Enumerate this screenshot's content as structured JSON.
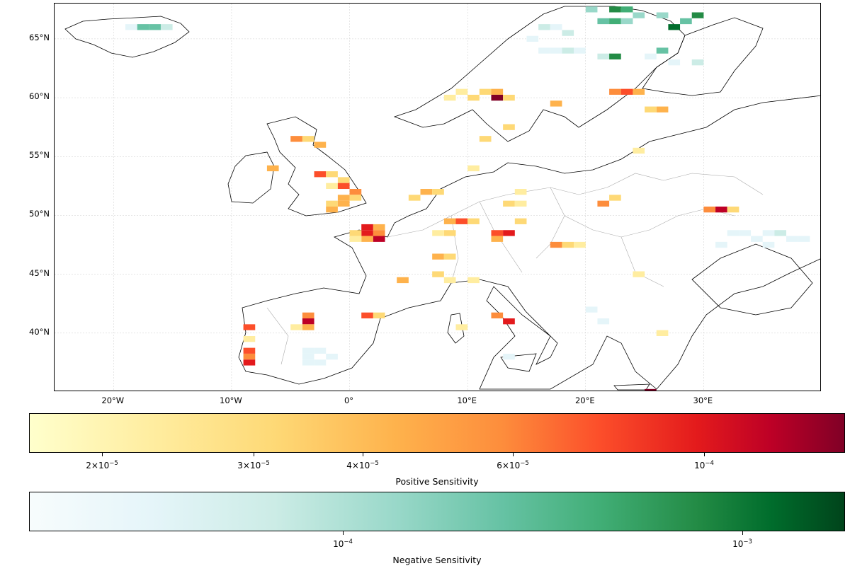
{
  "map": {
    "lat_labels": [
      "65°N",
      "60°N",
      "55°N",
      "50°N",
      "45°N",
      "40°N"
    ],
    "lon_labels": [
      "20°W",
      "10°W",
      "0°",
      "10°E",
      "20°E",
      "30°E"
    ],
    "extent_lon": [
      -25,
      40
    ],
    "extent_lat": [
      35,
      68
    ]
  },
  "colorbars": {
    "positive": {
      "label": "Positive Sensitivity",
      "scale": "log",
      "colors": [
        "#ffffcc",
        "#ffeda0",
        "#fed976",
        "#feb24c",
        "#fd8d3c",
        "#fc4e2a",
        "#e31a1c",
        "#bd0026",
        "#800026"
      ],
      "ticks": [
        {
          "mantissa": "2",
          "exp": "−5"
        },
        {
          "mantissa": "3",
          "exp": "−5"
        },
        {
          "mantissa": "4",
          "exp": "−5"
        },
        {
          "mantissa": "6",
          "exp": "−5"
        },
        {
          "mantissa": "",
          "exp": "−4"
        }
      ]
    },
    "negative": {
      "label": "Negative Sensitivity",
      "scale": "log",
      "colors": [
        "#f7fcfd",
        "#e5f5f9",
        "#ccece6",
        "#99d8c9",
        "#66c2a4",
        "#41ae76",
        "#238b45",
        "#006d2c",
        "#00441b"
      ],
      "ticks": [
        {
          "mantissa": "",
          "exp": "−4"
        },
        {
          "mantissa": "",
          "exp": "−3"
        }
      ]
    }
  },
  "cells": {
    "positive": [
      [
        -4.5,
        56.5,
        4
      ],
      [
        -3.5,
        56.5,
        2
      ],
      [
        -2.5,
        56,
        3
      ],
      [
        -6.5,
        54,
        3
      ],
      [
        -2.5,
        53.5,
        5
      ],
      [
        -1.5,
        53.5,
        2
      ],
      [
        -0.5,
        53,
        2
      ],
      [
        -1.5,
        52.5,
        1
      ],
      [
        -0.5,
        52.5,
        5
      ],
      [
        0.5,
        52,
        4
      ],
      [
        -0.5,
        51.5,
        3
      ],
      [
        0.5,
        51.5,
        2
      ],
      [
        -1.5,
        51,
        2
      ],
      [
        -0.5,
        51,
        3
      ],
      [
        -1.5,
        50.5,
        3
      ],
      [
        1.5,
        49,
        6
      ],
      [
        2.5,
        49,
        3
      ],
      [
        1.5,
        48.5,
        6
      ],
      [
        2.5,
        48.5,
        4
      ],
      [
        1.5,
        48,
        3
      ],
      [
        2.5,
        48,
        7
      ],
      [
        0.5,
        48.5,
        2
      ],
      [
        0.5,
        48,
        1
      ],
      [
        5.5,
        51.5,
        2
      ],
      [
        6.5,
        52,
        3
      ],
      [
        7.5,
        52,
        2
      ],
      [
        8.5,
        49.5,
        3
      ],
      [
        9.5,
        49.5,
        5
      ],
      [
        10.5,
        49.5,
        2
      ],
      [
        8.5,
        48.5,
        2
      ],
      [
        7.5,
        48.5,
        1
      ],
      [
        12.5,
        48.5,
        5
      ],
      [
        13.5,
        48.5,
        6
      ],
      [
        12.5,
        48,
        3
      ],
      [
        14.5,
        49.5,
        2
      ],
      [
        13.5,
        51,
        2
      ],
      [
        14.5,
        51,
        1
      ],
      [
        14.5,
        52,
        1
      ],
      [
        17.5,
        47.5,
        4
      ],
      [
        18.5,
        47.5,
        2
      ],
      [
        19.5,
        47.5,
        1
      ],
      [
        21.5,
        51,
        4
      ],
      [
        22.5,
        51.5,
        2
      ],
      [
        31.5,
        50.5,
        7
      ],
      [
        30.5,
        50.5,
        4
      ],
      [
        32.5,
        50.5,
        2
      ],
      [
        7.5,
        45,
        2
      ],
      [
        7.5,
        46.5,
        3
      ],
      [
        8.5,
        46.5,
        2
      ],
      [
        4.5,
        44.5,
        3
      ],
      [
        8.5,
        44.5,
        1
      ],
      [
        10.5,
        44.5,
        1
      ],
      [
        1.5,
        41.5,
        5
      ],
      [
        2.5,
        41.5,
        2
      ],
      [
        12.5,
        41.5,
        4
      ],
      [
        13.5,
        41,
        6
      ],
      [
        9.5,
        40.5,
        1
      ],
      [
        -3.5,
        41,
        7
      ],
      [
        -3.5,
        41.5,
        4
      ],
      [
        -3.5,
        40.5,
        3
      ],
      [
        -4.5,
        40.5,
        1
      ],
      [
        -8.5,
        40.5,
        5
      ],
      [
        -8.5,
        38.5,
        5
      ],
      [
        -8.5,
        38,
        4
      ],
      [
        -8.5,
        37.5,
        6
      ],
      [
        -8.5,
        39.5,
        1
      ],
      [
        12.5,
        60.5,
        3
      ],
      [
        11.5,
        60.5,
        2
      ],
      [
        12.5,
        60,
        8
      ],
      [
        13.5,
        60,
        2
      ],
      [
        10.5,
        60,
        2
      ],
      [
        8.5,
        60,
        1
      ],
      [
        9.5,
        60.5,
        1
      ],
      [
        17.5,
        59.5,
        3
      ],
      [
        22.5,
        60.5,
        4
      ],
      [
        23.5,
        60.5,
        5
      ],
      [
        24.5,
        60.5,
        3
      ],
      [
        26.5,
        59,
        3
      ],
      [
        25.5,
        59,
        2
      ],
      [
        11.5,
        56.5,
        2
      ],
      [
        13.5,
        57.5,
        2
      ],
      [
        10.5,
        54,
        1
      ],
      [
        24.5,
        55.5,
        1
      ],
      [
        25.5,
        35,
        8
      ],
      [
        24.5,
        45,
        1
      ],
      [
        26.5,
        40,
        1
      ]
    ],
    "negative": [
      [
        -17.5,
        66,
        4
      ],
      [
        -16.5,
        66,
        4
      ],
      [
        -15.5,
        66,
        2
      ],
      [
        -18.5,
        66,
        1
      ],
      [
        22.5,
        67.5,
        6
      ],
      [
        23.5,
        67.5,
        5
      ],
      [
        24.5,
        67,
        3
      ],
      [
        20.5,
        67.5,
        3
      ],
      [
        21.5,
        66.5,
        4
      ],
      [
        22.5,
        66.5,
        5
      ],
      [
        23.5,
        66.5,
        3
      ],
      [
        27.5,
        66,
        7
      ],
      [
        28.5,
        66.5,
        4
      ],
      [
        29.5,
        67,
        6
      ],
      [
        26.5,
        67,
        3
      ],
      [
        18.5,
        64,
        2
      ],
      [
        19.5,
        64,
        1
      ],
      [
        17.5,
        64,
        1
      ],
      [
        16.5,
        64,
        1
      ],
      [
        21.5,
        63.5,
        2
      ],
      [
        22.5,
        63.5,
        6
      ],
      [
        25.5,
        63.5,
        1
      ],
      [
        26.5,
        64,
        4
      ],
      [
        27.5,
        63,
        1
      ],
      [
        29.5,
        63,
        2
      ],
      [
        16.5,
        66,
        2
      ],
      [
        17.5,
        66,
        1
      ],
      [
        18.5,
        65.5,
        2
      ],
      [
        15.5,
        65,
        1
      ],
      [
        -3.5,
        38,
        1
      ],
      [
        -2.5,
        38.5,
        1
      ],
      [
        -3.5,
        37.5,
        1
      ],
      [
        -2.5,
        37.5,
        1
      ],
      [
        -1.5,
        38,
        1
      ],
      [
        -3.5,
        38.5,
        1
      ],
      [
        32.5,
        48.5,
        1
      ],
      [
        33.5,
        48.5,
        1
      ],
      [
        34.5,
        48,
        1
      ],
      [
        35.5,
        48.5,
        1
      ],
      [
        36.5,
        48.5,
        2
      ],
      [
        37.5,
        48,
        1
      ],
      [
        38.5,
        48,
        1
      ],
      [
        35.5,
        47.5,
        1
      ],
      [
        31.5,
        47.5,
        1
      ],
      [
        21.5,
        41,
        1
      ],
      [
        20.5,
        42,
        1
      ],
      [
        13.5,
        38,
        1
      ]
    ]
  }
}
